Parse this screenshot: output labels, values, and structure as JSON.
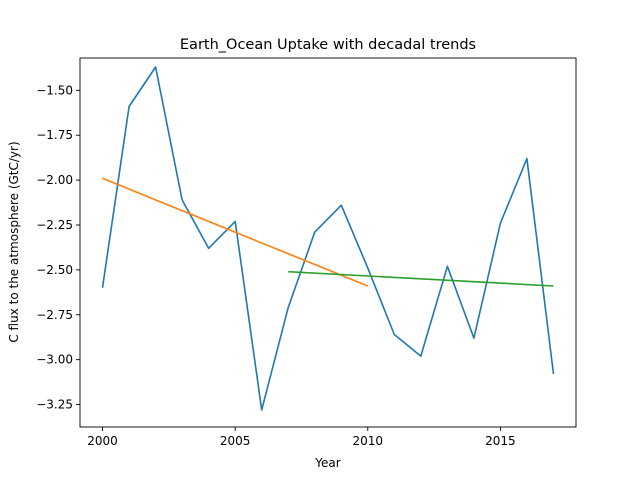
{
  "chart_data": {
    "type": "line",
    "title": "Earth_Ocean Uptake with decadal trends",
    "xlabel": "Year",
    "ylabel": "C flux to the atmosphere (GtC/yr)",
    "xlim": [
      1999.15,
      2017.85
    ],
    "ylim": [
      -3.375,
      -1.32
    ],
    "xticks": [
      2000,
      2005,
      2010,
      2015
    ],
    "yticks": [
      -3.25,
      -3.0,
      -2.75,
      -2.5,
      -2.25,
      -2.0,
      -1.75,
      -1.5
    ],
    "ytick_labels": [
      "−3.25",
      "−3.00",
      "−2.75",
      "−2.50",
      "−2.25",
      "−2.00",
      "−1.75",
      "−1.50"
    ],
    "grid": false,
    "series": [
      {
        "color": "#1f77b4",
        "x": [
          2000,
          2001,
          2002,
          2003,
          2004,
          2005,
          2006,
          2007,
          2008,
          2009,
          2010,
          2011,
          2012,
          2013,
          2014,
          2015,
          2016,
          2017
        ],
        "y": [
          -2.6,
          -1.59,
          -1.37,
          -2.11,
          -2.38,
          -2.23,
          -3.28,
          -2.71,
          -2.29,
          -2.14,
          -2.49,
          -2.86,
          -2.98,
          -2.48,
          -2.88,
          -2.24,
          -1.88,
          -3.08
        ]
      },
      {
        "color": "#ff7f0e",
        "x": [
          2000,
          2010
        ],
        "y": [
          -1.99,
          -2.59
        ]
      },
      {
        "color": "#2ca02c",
        "x": [
          2007,
          2017
        ],
        "y": [
          -2.51,
          -2.59
        ]
      }
    ]
  }
}
